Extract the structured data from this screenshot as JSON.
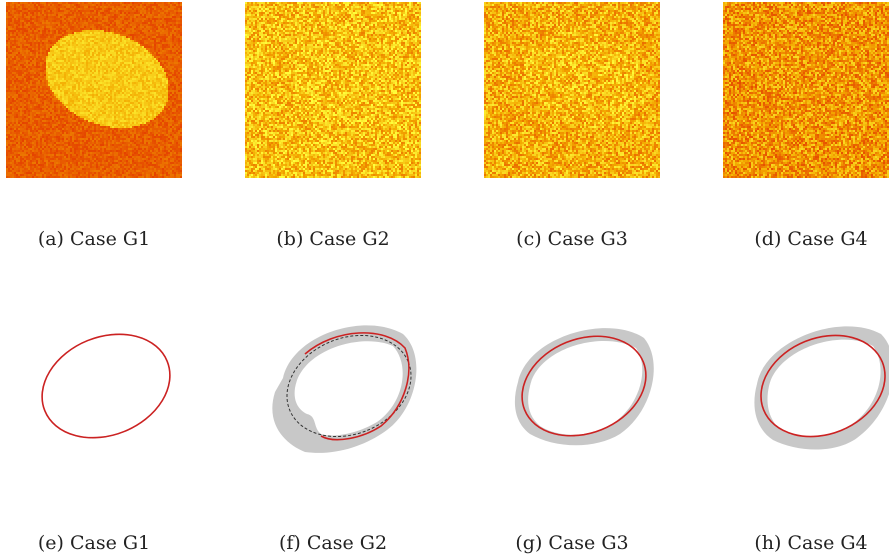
{
  "figure": {
    "top_row": [
      {
        "caption": "(a) Case G1",
        "has_ellipse": true
      },
      {
        "caption": "(b) Case G2",
        "has_ellipse": false
      },
      {
        "caption": "(c) Case G3",
        "has_ellipse": false
      },
      {
        "caption": "(d) Case G4",
        "has_ellipse": false
      }
    ],
    "bottom_row": [
      {
        "caption": "(e) Case G1",
        "uncertainty_band": "none"
      },
      {
        "caption": "(f) Case G2",
        "uncertainty_band": "wide"
      },
      {
        "caption": "(g) Case G3",
        "uncertainty_band": "medium"
      },
      {
        "caption": "(h) Case G4",
        "uncertainty_band": "medium"
      }
    ],
    "colors": {
      "estimate": "#cc2222",
      "truth": "#333333",
      "band": "#c8c8c8",
      "heatmap_low": "#e03000",
      "heatmap_high": "#ffff40"
    }
  }
}
